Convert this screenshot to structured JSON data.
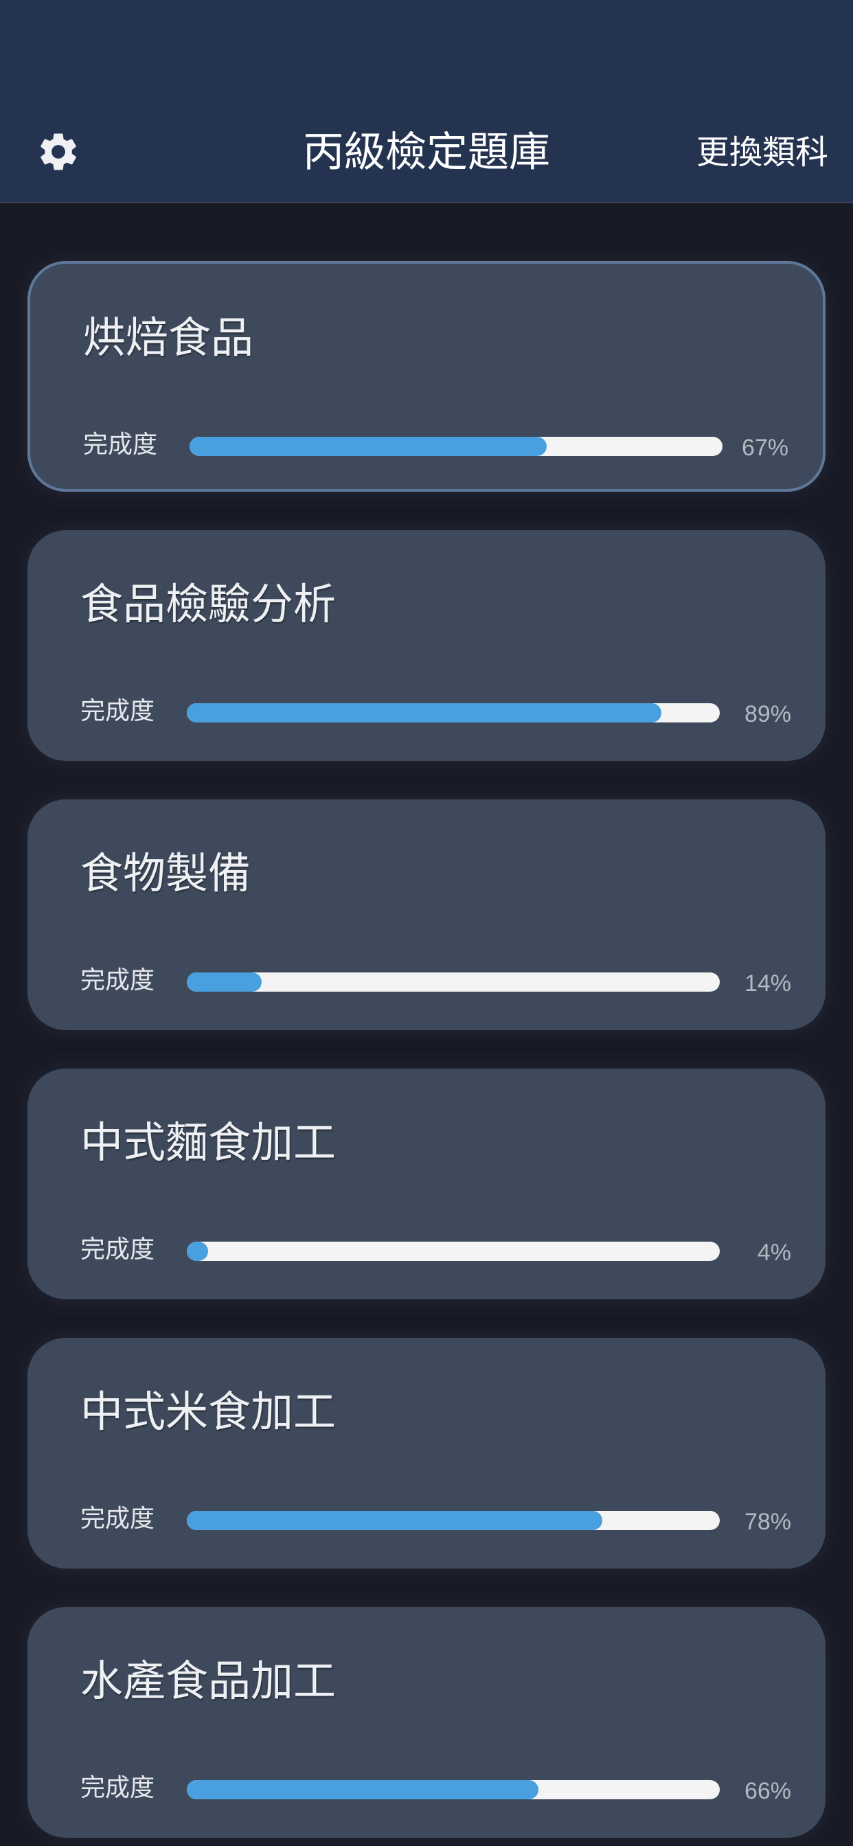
{
  "header": {
    "title": "丙級檢定題庫",
    "switch_label": "更換類科",
    "settings_icon": "gear-icon"
  },
  "progress_label": "完成度",
  "colors": {
    "accent": "#4aa0de",
    "header_bg": "#243350",
    "card_bg": "#3e4a5c",
    "selected_border": "#5f7899"
  },
  "categories": [
    {
      "name": "烘焙食品",
      "progress": 67,
      "progress_text": "67%",
      "selected": true
    },
    {
      "name": "食品檢驗分析",
      "progress": 89,
      "progress_text": "89%",
      "selected": false
    },
    {
      "name": "食物製備",
      "progress": 14,
      "progress_text": "14%",
      "selected": false
    },
    {
      "name": "中式麵食加工",
      "progress": 4,
      "progress_text": "4%",
      "selected": false
    },
    {
      "name": "中式米食加工",
      "progress": 78,
      "progress_text": "78%",
      "selected": false
    },
    {
      "name": "水產食品加工",
      "progress": 66,
      "progress_text": "66%",
      "selected": false
    }
  ]
}
